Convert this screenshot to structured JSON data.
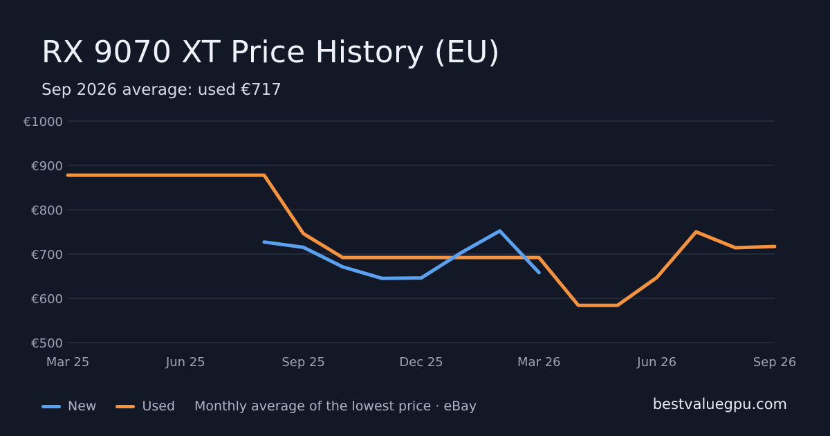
{
  "title": "RX 9070 XT Price History (EU)",
  "subtitle": "Sep 2026 average: used €717",
  "brand": "bestvaluegpu.com",
  "legend": {
    "new_label": "New",
    "used_label": "Used",
    "note": "Monthly average of the lowest price · eBay"
  },
  "colors": {
    "background": "#121826",
    "grid": "#273043",
    "axis_text": "#9aa4b3",
    "new": "#5aa2f0",
    "used": "#f5923e"
  },
  "chart_data": {
    "type": "line",
    "title": "RX 9070 XT Price History (EU)",
    "subtitle": "Sep 2026 average: used €717",
    "ylim": [
      500,
      1000
    ],
    "y_ticks": [
      500,
      600,
      700,
      800,
      900,
      1000
    ],
    "y_tick_labels": [
      "€500",
      "€600",
      "€700",
      "€800",
      "€900",
      "€1000"
    ],
    "xlim": [
      "2025-03",
      "2026-09"
    ],
    "x_ticks": [
      "2025-03",
      "2025-06",
      "2025-09",
      "2025-12",
      "2026-03",
      "2026-06",
      "2026-09"
    ],
    "x_tick_labels": [
      "Mar 25",
      "Jun 25",
      "Sep 25",
      "Dec 25",
      "Mar 26",
      "Jun 26",
      "Sep 26"
    ],
    "grid": true,
    "legend_position": "bottom-left",
    "series": [
      {
        "name": "New",
        "color": "#5aa2f0",
        "points": [
          {
            "x": "2025-08",
            "y": 727
          },
          {
            "x": "2025-09",
            "y": 715
          },
          {
            "x": "2025-10",
            "y": 671
          },
          {
            "x": "2025-11",
            "y": 645
          },
          {
            "x": "2025-12",
            "y": 646
          },
          {
            "x": "2026-01",
            "y": 702
          },
          {
            "x": "2026-02",
            "y": 752
          },
          {
            "x": "2026-03",
            "y": 658
          }
        ]
      },
      {
        "name": "Used",
        "color": "#f5923e",
        "points": [
          {
            "x": "2025-03",
            "y": 878
          },
          {
            "x": "2025-04",
            "y": 878
          },
          {
            "x": "2025-05",
            "y": 878
          },
          {
            "x": "2025-06",
            "y": 878
          },
          {
            "x": "2025-07",
            "y": 878
          },
          {
            "x": "2025-08",
            "y": 878
          },
          {
            "x": "2025-09",
            "y": 746
          },
          {
            "x": "2025-10",
            "y": 692
          },
          {
            "x": "2025-11",
            "y": 692
          },
          {
            "x": "2025-12",
            "y": 692
          },
          {
            "x": "2026-01",
            "y": 692
          },
          {
            "x": "2026-02",
            "y": 692
          },
          {
            "x": "2026-03",
            "y": 692
          },
          {
            "x": "2026-04",
            "y": 584
          },
          {
            "x": "2026-05",
            "y": 584
          },
          {
            "x": "2026-06",
            "y": 647
          },
          {
            "x": "2026-07",
            "y": 750
          },
          {
            "x": "2026-08",
            "y": 714
          },
          {
            "x": "2026-09",
            "y": 717
          }
        ]
      }
    ]
  }
}
